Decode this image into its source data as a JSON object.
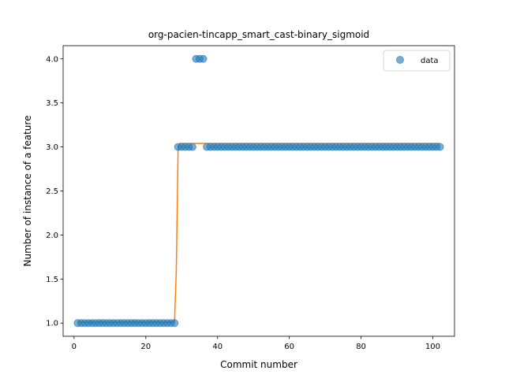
{
  "chart_data": {
    "type": "scatter",
    "title": "org-pacien-tincapp_smart_cast-binary_sigmoid",
    "xlabel": "Commit number",
    "ylabel": "Number of instance of a feature",
    "xlim": [
      -3.05,
      106.05
    ],
    "ylim": [
      0.85,
      4.15
    ],
    "xticks": [
      0,
      20,
      40,
      60,
      80,
      100
    ],
    "xtick_labels": [
      "0",
      "20",
      "40",
      "60",
      "80",
      "100"
    ],
    "yticks": [
      1.0,
      1.5,
      2.0,
      2.5,
      3.0,
      3.5,
      4.0
    ],
    "ytick_labels": [
      "1.0",
      "1.5",
      "2.0",
      "2.5",
      "3.0",
      "3.5",
      "4.0"
    ],
    "grid": false,
    "legend": {
      "position": "top-right",
      "entries": [
        "data"
      ]
    },
    "series": [
      {
        "name": "data",
        "kind": "scatter",
        "color": "#1f77b4",
        "x": [
          1,
          2,
          3,
          4,
          5,
          6,
          7,
          8,
          9,
          10,
          11,
          12,
          13,
          14,
          15,
          16,
          17,
          18,
          19,
          20,
          21,
          22,
          23,
          24,
          25,
          26,
          27,
          28,
          29,
          30,
          31,
          32,
          33,
          34,
          35,
          36,
          37,
          38,
          39,
          40,
          41,
          42,
          43,
          44,
          45,
          46,
          47,
          48,
          49,
          50,
          51,
          52,
          53,
          54,
          55,
          56,
          57,
          58,
          59,
          60,
          61,
          62,
          63,
          64,
          65,
          66,
          67,
          68,
          69,
          70,
          71,
          72,
          73,
          74,
          75,
          76,
          77,
          78,
          79,
          80,
          81,
          82,
          83,
          84,
          85,
          86,
          87,
          88,
          89,
          90,
          91,
          92,
          93,
          94,
          95,
          96,
          97,
          98,
          99,
          100,
          101,
          102
        ],
        "y": [
          1,
          1,
          1,
          1,
          1,
          1,
          1,
          1,
          1,
          1,
          1,
          1,
          1,
          1,
          1,
          1,
          1,
          1,
          1,
          1,
          1,
          1,
          1,
          1,
          1,
          1,
          1,
          1,
          3,
          3,
          3,
          3,
          3,
          4,
          4,
          4,
          3,
          3,
          3,
          3,
          3,
          3,
          3,
          3,
          3,
          3,
          3,
          3,
          3,
          3,
          3,
          3,
          3,
          3,
          3,
          3,
          3,
          3,
          3,
          3,
          3,
          3,
          3,
          3,
          3,
          3,
          3,
          3,
          3,
          3,
          3,
          3,
          3,
          3,
          3,
          3,
          3,
          3,
          3,
          3,
          3,
          3,
          3,
          3,
          3,
          3,
          3,
          3,
          3,
          3,
          3,
          3,
          3,
          3,
          3,
          3,
          3,
          3,
          3,
          3,
          3,
          3
        ]
      },
      {
        "kind": "line",
        "color": "#ff7f0e",
        "x": [
          1,
          28,
          28.5,
          29,
          29.5,
          102
        ],
        "y": [
          1.01,
          1.01,
          1.6,
          3.0,
          3.04,
          3.04
        ]
      }
    ]
  }
}
